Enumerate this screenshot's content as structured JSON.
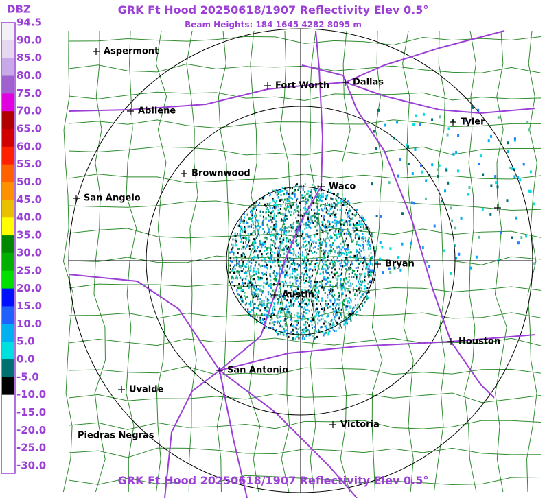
{
  "header": {
    "title": "GRK Ft Hood 20250618/1907 Reflectivity Elev 0.5°",
    "subtitle": "Beam Heights: 184 1645 4282 8095 m",
    "footer": "GRK Ft Hood 20250618/1907 Reflectivity Elev 0.5°"
  },
  "legend": {
    "unit": "DBZ",
    "labels": [
      "94.5",
      "90.0",
      "85.0",
      "80.0",
      "75.0",
      "70.0",
      "65.0",
      "60.0",
      "55.0",
      "50.0",
      "45.0",
      "40.0",
      "35.0",
      "30.0",
      "25.0",
      "20.0",
      "15.0",
      "10.0",
      "5.0",
      "0.0",
      "-5.0",
      "-10.0",
      "-15.0",
      "-20.0",
      "-25.0",
      "-30.0"
    ]
  },
  "cities": [
    "Aspermont",
    "Abilene",
    "Fort Worth",
    "Dallas",
    "Tyler",
    "Brownwood",
    "Waco",
    "San Angelo",
    "Bryan",
    "Austin",
    "Houston",
    "San Antonio",
    "Uvalde",
    "Victoria",
    "Piedras Negras"
  ]
}
